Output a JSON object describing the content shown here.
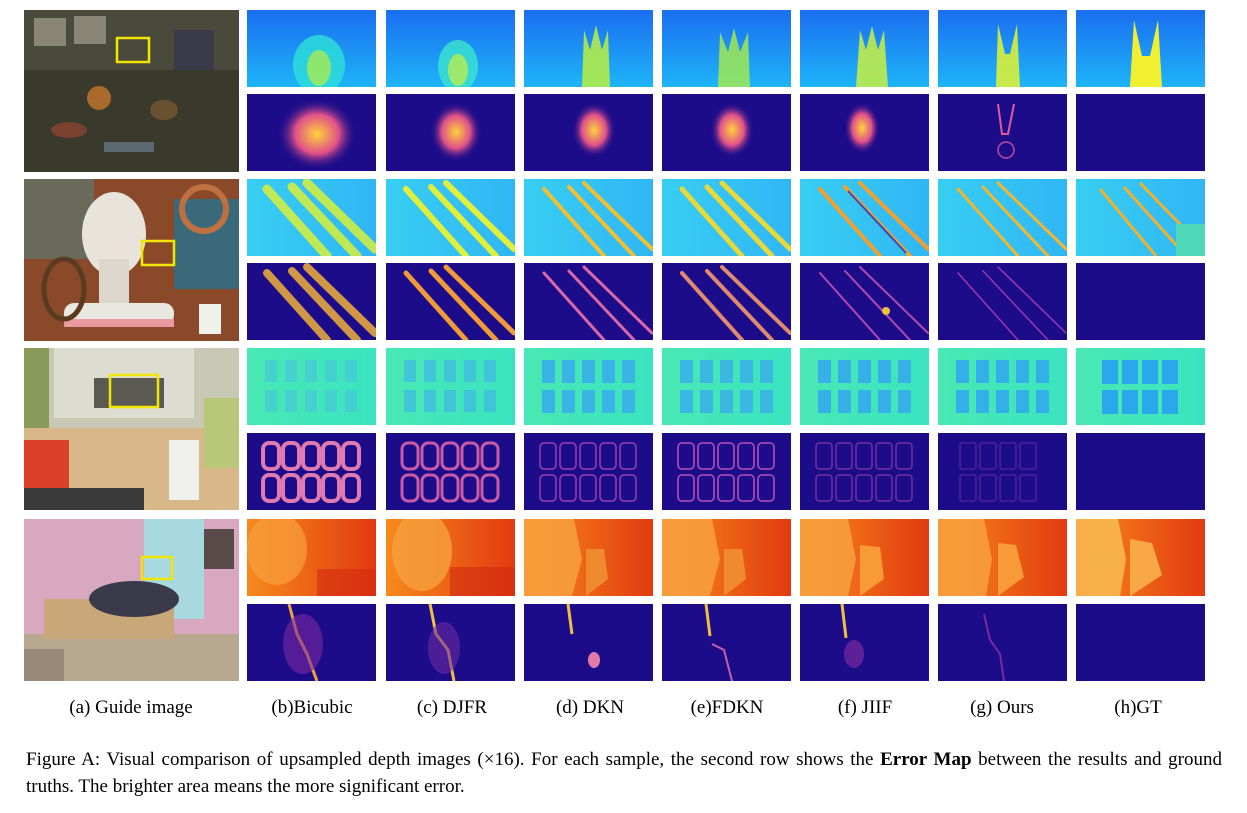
{
  "figure": {
    "column_labels": [
      "(a) Guide image",
      "(b)Bicubic",
      "(c) DJFR",
      "(d) DKN",
      "(e)FDKN",
      "(f) JIIF",
      "(g) Ours",
      "(h)GT"
    ],
    "caption": {
      "prefix": "Figure A: Visual comparison of upsampled depth images (×16). For each sample, the second row shows the ",
      "bold": "Error Map",
      "suffix": " between the results and ground truths. The brighter area means the more significant error."
    },
    "colors": {
      "highlight_box": "#f2e600",
      "error_base": "#1c0c8a",
      "error_hot": "#ffd23a",
      "depth_blue": "#1e8cf5",
      "depth_cyan": "#40d8f2",
      "depth_teal": "#3fe8b8",
      "depth_orange": "#f07a1a"
    }
  }
}
